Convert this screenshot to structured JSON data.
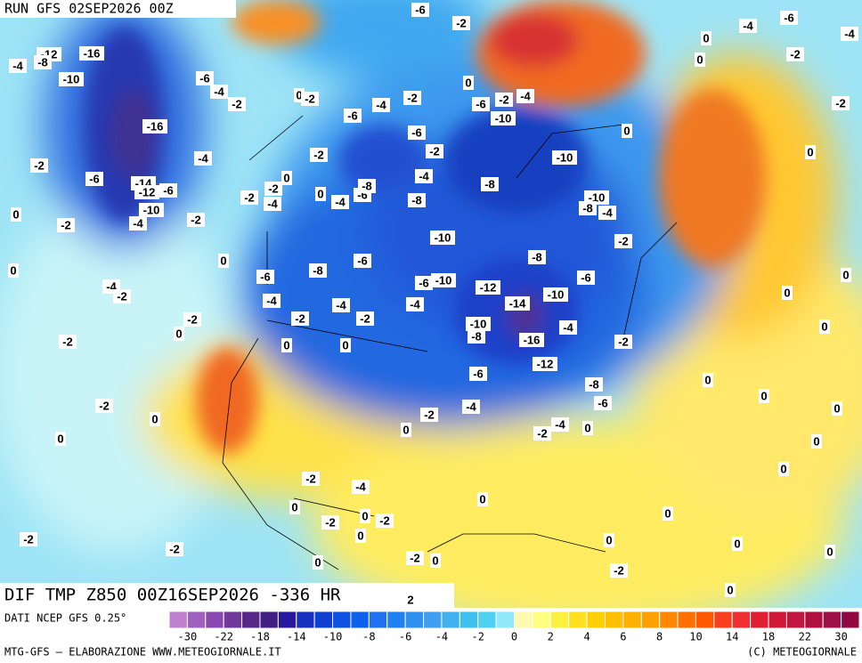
{
  "header": {
    "run": "RUN GFS 02SEP2026 00Z"
  },
  "map": {
    "labels": [
      "-6",
      "-2",
      "-6",
      "-4",
      "-4",
      "0",
      "-12",
      "-8",
      "-4",
      "-16",
      "-10",
      "-6",
      "-4",
      "-2",
      "0",
      "-2",
      "-2",
      "-4",
      "-6",
      "-6",
      "-2",
      "-4",
      "-10",
      "-2",
      "0",
      "0",
      "0",
      "-2",
      "-16",
      "-6",
      "-2",
      "-4",
      "-2",
      "-10",
      "0",
      "-2",
      "-6",
      "-14",
      "-12",
      "-6",
      "-10",
      "-4",
      "-2",
      "-2",
      "-4",
      "0",
      "0",
      "-4",
      "-6",
      "-8",
      "-4",
      "-8",
      "-8",
      "-10",
      "-8",
      "-4",
      "0",
      "-2",
      "-2",
      "-10",
      "-2",
      "0",
      "0",
      "-8",
      "-6",
      "-8",
      "-6",
      "-6",
      "-4",
      "-2",
      "-4",
      "-6",
      "-10",
      "-12",
      "-10",
      "0",
      "0",
      "-2",
      "0",
      "-2",
      "-4",
      "-2",
      "-4",
      "-14",
      "-10",
      "-8",
      "-16",
      "-4",
      "-2",
      "0",
      "-2",
      "0",
      "0",
      "-12",
      "-6",
      "-8",
      "0",
      "0",
      "-2",
      "0",
      "-4",
      "-2",
      "-6",
      "0",
      "-4",
      "-2",
      "0",
      "0",
      "0",
      "0",
      "0",
      "-2",
      "-4",
      "0",
      "0",
      "0",
      "0",
      "-2",
      "-2",
      "-2",
      "0",
      "-2",
      "0",
      "0",
      "0",
      "-2",
      "0",
      "0",
      "-2",
      "0",
      "2"
    ]
  },
  "footer": {
    "title": "DIF TMP Z850 00Z16SEP2026 -336 HR",
    "source": "DATI NCEP GFS 0.25°",
    "credit": "MTG-GFS — ELABORAZIONE WWW.METEOGIORNALE.IT",
    "copyright": "(C) METEOGIORNALE"
  },
  "colorbar": {
    "colors": [
      "#c080d0",
      "#a060c0",
      "#8848b0",
      "#703898",
      "#582888",
      "#402080",
      "#2818a0",
      "#1830c0",
      "#1040d0",
      "#1050e0",
      "#1060f0",
      "#2070f0",
      "#2080f0",
      "#3090f0",
      "#40a0f0",
      "#40b0f0",
      "#40c0f0",
      "#50d0f0",
      "#90e8f8",
      "#fff8b0",
      "#ffff80",
      "#fff040",
      "#ffe020",
      "#ffd000",
      "#ffc000",
      "#ffb000",
      "#ffa000",
      "#ff8800",
      "#ff7000",
      "#ff5800",
      "#f84020",
      "#f03030",
      "#e02030",
      "#d01838",
      "#c01840",
      "#b01040",
      "#a01048",
      "#900840"
    ],
    "ticks": [
      "-30",
      "-22",
      "-18",
      "-14",
      "-10",
      "-8",
      "-6",
      "-4",
      "-2",
      "0",
      "2",
      "4",
      "6",
      "8",
      "10",
      "14",
      "18",
      "22",
      "30"
    ]
  }
}
